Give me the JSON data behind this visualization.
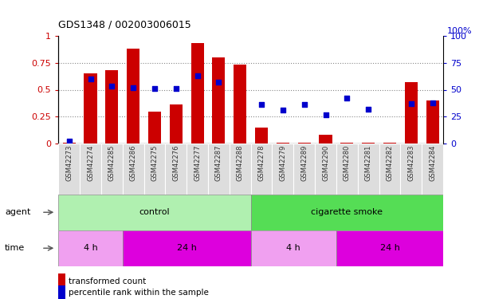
{
  "title": "GDS1348 / 002003006015",
  "samples": [
    "GSM42273",
    "GSM42274",
    "GSM42285",
    "GSM42286",
    "GSM42275",
    "GSM42276",
    "GSM42277",
    "GSM42287",
    "GSM42288",
    "GSM42278",
    "GSM42279",
    "GSM42289",
    "GSM42290",
    "GSM42280",
    "GSM42281",
    "GSM42282",
    "GSM42283",
    "GSM42284"
  ],
  "bar_values": [
    0.005,
    0.65,
    0.68,
    0.88,
    0.3,
    0.36,
    0.93,
    0.8,
    0.73,
    0.15,
    0.01,
    0.01,
    0.08,
    0.01,
    0.01,
    0.005,
    0.57,
    0.4
  ],
  "dot_values": [
    0.02,
    0.6,
    0.53,
    0.52,
    0.51,
    0.51,
    0.63,
    0.57,
    null,
    0.36,
    0.31,
    0.36,
    0.27,
    0.42,
    0.32,
    null,
    0.37,
    0.38
  ],
  "bar_color": "#cc0000",
  "dot_color": "#0000cc",
  "control_color": "#b0f0b0",
  "smoke_color": "#55dd55",
  "time_4h_color": "#f0a0f0",
  "time_24h_color": "#dd00dd",
  "left_yticks": [
    0,
    0.25,
    0.5,
    0.75,
    1.0
  ],
  "left_yticklabels": [
    "0",
    "0.25",
    "0.5",
    "0.75",
    "1"
  ],
  "right_yticks": [
    0,
    25,
    50,
    75,
    100
  ],
  "right_yticklabels": [
    "0",
    "25",
    "50",
    "75",
    "100"
  ],
  "right_top_label": "100%",
  "ylim_left": [
    0,
    1.0
  ],
  "ylim_right": [
    0,
    100
  ],
  "n_control": 9,
  "n_smoke": 9,
  "n_4h_ctrl": 3,
  "n_24h_ctrl": 6,
  "n_4h_smoke": 4,
  "n_24h_smoke": 5
}
